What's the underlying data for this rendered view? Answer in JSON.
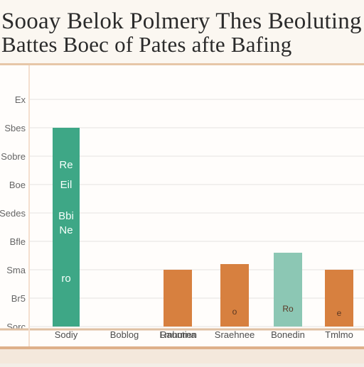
{
  "chart_data": {
    "type": "bar",
    "title": "Sooay Belok Polmery Thes Beoluting",
    "subtitle": "Battes Boec of Pates afte Bafing",
    "xlabel": "",
    "ylabel": "",
    "categories": [
      "Sodiy",
      "Boblog",
      "Rauntien",
      "Lmhurna",
      "Sraehnee",
      "Bonedin",
      "Tmlmo"
    ],
    "values": [
      70,
      0,
      0,
      20,
      22,
      26,
      20
    ],
    "ylim": [
      0,
      90
    ],
    "yticks": [
      {
        "value": 0,
        "label": "Sorc"
      },
      {
        "value": 10,
        "label": "Br5"
      },
      {
        "value": 20,
        "label": "Sma"
      },
      {
        "value": 30,
        "label": "Bfle"
      },
      {
        "value": 40,
        "label": "Sedes"
      },
      {
        "value": 50,
        "label": "Boe"
      },
      {
        "value": 60,
        "label": "Sobre"
      },
      {
        "value": 70,
        "label": "Sbes"
      },
      {
        "value": 80,
        "label": "Ex"
      }
    ],
    "bar_labels": [
      [
        "Re",
        "Eil",
        "Bbi",
        "Ne",
        "ro"
      ],
      [],
      [],
      [],
      [
        "o"
      ],
      [
        "Ro"
      ],
      [
        "e"
      ]
    ],
    "colors": [
      "#3ea786",
      "#3ea786",
      "#3ea786",
      "#d7803f",
      "#d7803f",
      "#8cc7b4",
      "#d7803f"
    ],
    "grid": true,
    "legend": "none"
  }
}
